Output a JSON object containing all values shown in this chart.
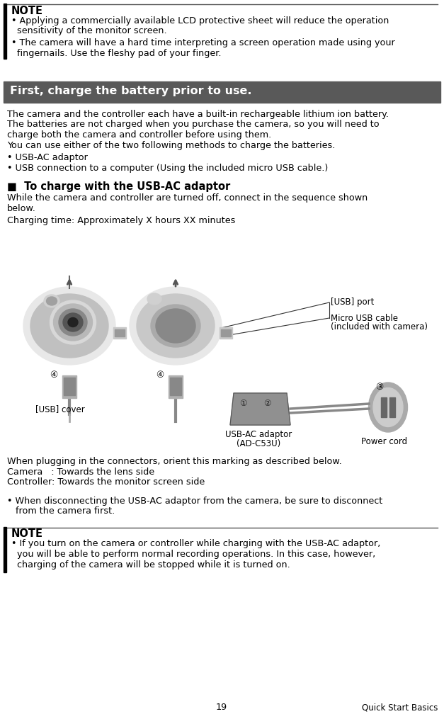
{
  "page_number": "19",
  "page_label": "Quick Start Basics",
  "bg_color": "#ffffff",
  "header_bg_color": "#595959",
  "header_text_color": "#ffffff",
  "header_text": "First, charge the battery prior to use.",
  "note1_title": "NOTE",
  "note1_line1": "• Applying a commercially available LCD protective sheet will reduce the operation",
  "note1_line2": "  sensitivity of the monitor screen.",
  "note1_line3": "• The camera will have a hard time interpreting a screen operation made using your",
  "note1_line4": "  fingernails. Use the fleshy pad of your finger.",
  "body_line1": "The camera and the controller each have a built-in rechargeable lithium ion battery.",
  "body_line2": "The batteries are not charged when you purchase the camera, so you will need to",
  "body_line3": "charge both the camera and controller before using them.",
  "body_line4": "You can use either of the two following methods to charge the batteries.",
  "body_line5": "• USB-AC adaptor",
  "body_line6": "• USB connection to a computer (Using the included micro USB cable.)",
  "section_title": "■  To charge with the USB-AC adaptor",
  "sec_line1": "While the camera and controller are turned off, connect in the sequence shown",
  "sec_line2": "below.",
  "sec_line3": "Charging time: Approximately X hours XX minutes",
  "label_usb_port": "[USB] port",
  "label_micro_usb1": "Micro USB cable",
  "label_micro_usb2": "(included with camera)",
  "label_usb_cover": "[USB] cover",
  "label_usb_ac1": "USB-AC adaptor",
  "label_usb_ac2": "(AD-C53U)",
  "label_power_cord": "Power cord",
  "orient_line1": "When plugging in the connectors, orient this marking as described below.",
  "orient_line2": "Camera   : Towards the lens side",
  "orient_line3": "Controller: Towards the monitor screen side",
  "bullet_line1": "• When disconnecting the USB-AC adaptor from the camera, be sure to disconnect",
  "bullet_line2": "   from the camera first.",
  "note2_title": "NOTE",
  "note2_line1": "• If you turn on the camera or controller while charging with the USB-AC adaptor,",
  "note2_line2": "  you will be able to perform normal recording operations. In this case, however,",
  "note2_line3": "  charging of the camera will be stopped while it is turned on.",
  "font_body": 9.2,
  "font_header": 11.5,
  "font_section": 10.5,
  "font_note_title": 10.5,
  "font_footer": 8.5
}
